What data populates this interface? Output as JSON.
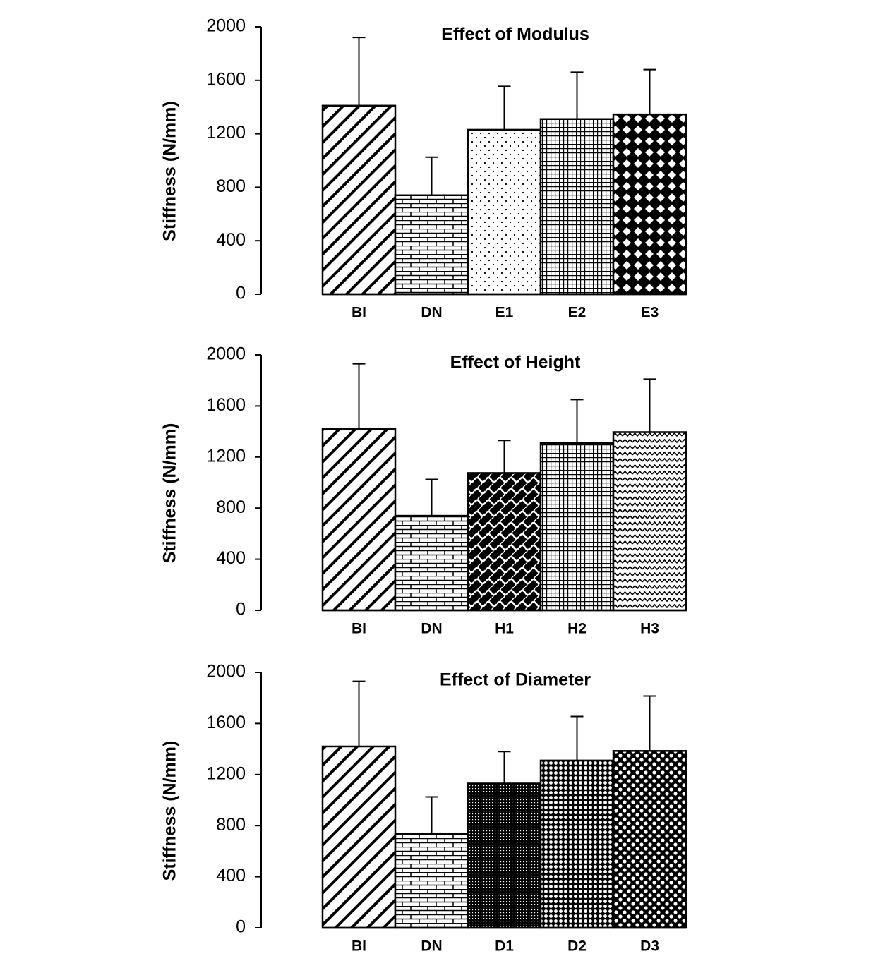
{
  "chart_data": [
    {
      "type": "bar",
      "title": "Effect of Modulus",
      "y_label": "Stiffness (N/mm)",
      "categories": [
        "BI",
        "DN",
        "E1",
        "E2",
        "E3"
      ],
      "values": [
        1410,
        740,
        1230,
        1310,
        1345
      ],
      "errors": [
        510,
        285,
        325,
        350,
        335
      ],
      "color": "#000000",
      "ylim": [
        0,
        2000
      ],
      "yticks": [
        0,
        400,
        800,
        1200,
        1600,
        2000
      ]
    },
    {
      "type": "bar",
      "title": "Effect of Height",
      "y_label": "Stiffness (N/mm)",
      "categories": [
        "BI",
        "DN",
        "H1",
        "H2",
        "H3"
      ],
      "values": [
        1420,
        740,
        1075,
        1310,
        1395
      ],
      "errors": [
        510,
        285,
        255,
        340,
        415
      ],
      "color": "#000000",
      "ylim": [
        0,
        2000
      ],
      "yticks": [
        0,
        400,
        800,
        1200,
        1600,
        2000
      ]
    },
    {
      "type": "bar",
      "title": "Effect of Diameter",
      "y_label": "Stiffness (N/mm)",
      "categories": [
        "BI",
        "DN",
        "D1",
        "D2",
        "D3"
      ],
      "values": [
        1420,
        735,
        1130,
        1310,
        1385
      ],
      "errors": [
        510,
        290,
        250,
        345,
        430
      ],
      "color": "#000000",
      "ylim": [
        0,
        2000
      ],
      "yticks": [
        0,
        400,
        800,
        1200,
        1600,
        2000
      ]
    }
  ]
}
